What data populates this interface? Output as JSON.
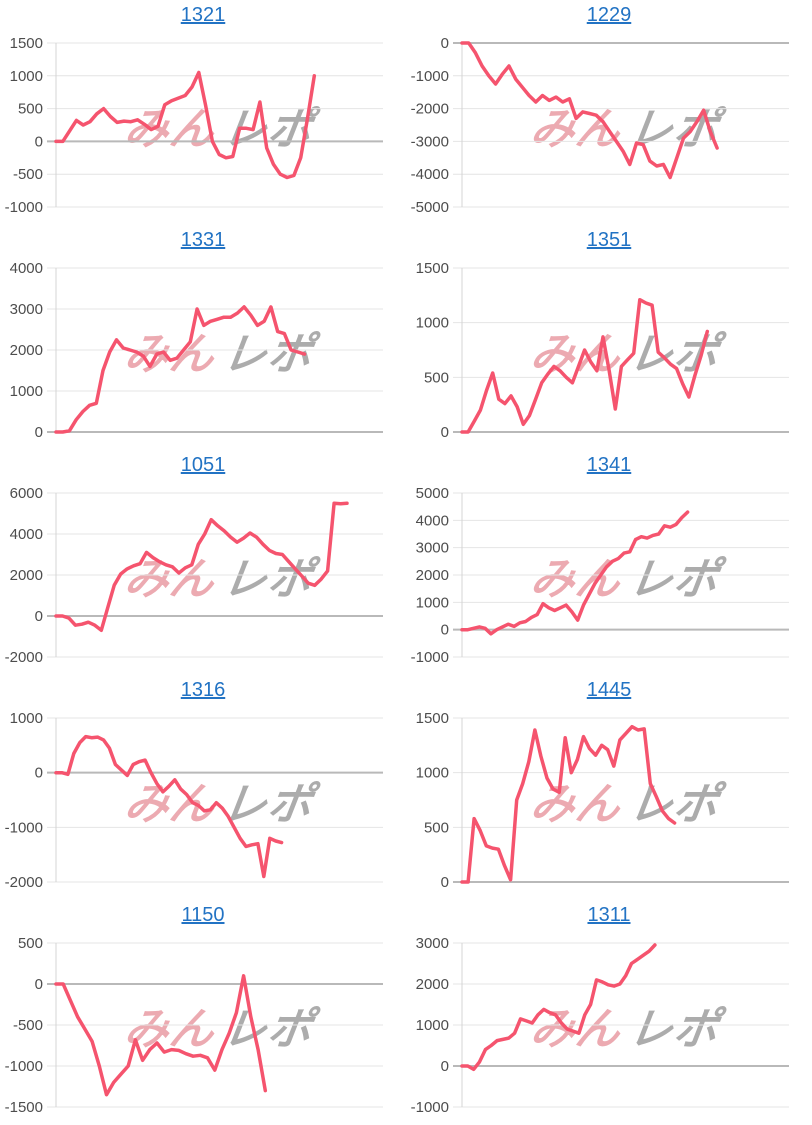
{
  "page": {
    "background": "#ffffff"
  },
  "colors": {
    "line": "#f5546e",
    "grid": "#e4e4e4",
    "zero_line": "#b9b9b9",
    "axis": "#d4d4d4",
    "tick_label": "#4d4d4d",
    "title_link": "#2273c4",
    "watermark_pink": "rgba(231,149,158,0.8)",
    "watermark_gray": "rgba(158,158,158,0.85)"
  },
  "watermark": {
    "pink_text": "みん",
    "gray_text": "レポ"
  },
  "chart_data": [
    {
      "type": "line",
      "title": "1321",
      "ticks": [
        1500,
        1000,
        500,
        0,
        -500,
        -1000
      ],
      "ylim": [
        -1000,
        1500
      ],
      "xlabel": "",
      "ylabel": "",
      "legend": "none",
      "grid": "horizontal",
      "span_frac": 0.79,
      "values": [
        0,
        0,
        160,
        320,
        250,
        300,
        420,
        500,
        380,
        290,
        310,
        300,
        330,
        260,
        180,
        230,
        560,
        620,
        660,
        700,
        830,
        1050,
        550,
        0,
        -200,
        -250,
        -230,
        200,
        200,
        180,
        600,
        -100,
        -350,
        -500,
        -550,
        -520,
        -250,
        350,
        1000
      ]
    },
    {
      "type": "line",
      "title": "1229",
      "ticks": [
        0,
        -1000,
        -2000,
        -3000,
        -4000,
        -5000
      ],
      "ylim": [
        -5000,
        0
      ],
      "xlabel": "",
      "ylabel": "",
      "legend": "none",
      "grid": "horizontal",
      "span_frac": 0.78,
      "values": [
        0,
        0,
        -300,
        -700,
        -1000,
        -1250,
        -950,
        -700,
        -1100,
        -1350,
        -1600,
        -1800,
        -1600,
        -1750,
        -1650,
        -1800,
        -1700,
        -2300,
        -2100,
        -2150,
        -2200,
        -2400,
        -2700,
        -3000,
        -3300,
        -3700,
        -3050,
        -3100,
        -3600,
        -3750,
        -3700,
        -4100,
        -3500,
        -2900,
        -2700,
        -2400,
        -2050,
        -2700,
        -3200
      ]
    },
    {
      "type": "line",
      "title": "1331",
      "ticks": [
        4000,
        3000,
        2000,
        1000,
        0
      ],
      "ylim": [
        0,
        4000
      ],
      "xlabel": "",
      "ylabel": "",
      "legend": "none",
      "grid": "horizontal",
      "span_frac": 0.76,
      "values": [
        0,
        0,
        30,
        300,
        500,
        650,
        700,
        1500,
        1950,
        2250,
        2050,
        2000,
        1950,
        1850,
        1600,
        1900,
        1950,
        1750,
        1800,
        2000,
        2200,
        3000,
        2600,
        2700,
        2750,
        2800,
        2800,
        2900,
        3050,
        2850,
        2600,
        2700,
        3050,
        2450,
        2400,
        2000,
        1950,
        1900
      ]
    },
    {
      "type": "line",
      "title": "1351",
      "ticks": [
        1500,
        1000,
        500,
        0
      ],
      "ylim": [
        0,
        1500
      ],
      "xlabel": "",
      "ylabel": "",
      "legend": "none",
      "grid": "horizontal",
      "span_frac": 0.75,
      "values": [
        0,
        0,
        100,
        200,
        380,
        540,
        300,
        260,
        330,
        230,
        70,
        150,
        300,
        450,
        530,
        600,
        560,
        500,
        450,
        600,
        750,
        640,
        560,
        870,
        560,
        210,
        600,
        660,
        720,
        1210,
        1180,
        1160,
        730,
        680,
        620,
        580,
        440,
        320,
        520,
        700,
        920
      ]
    },
    {
      "type": "line",
      "title": "1051",
      "ticks": [
        6000,
        4000,
        2000,
        0,
        -2000
      ],
      "ylim": [
        -2000,
        6000
      ],
      "xlabel": "",
      "ylabel": "",
      "legend": "none",
      "grid": "horizontal",
      "span_frac": 0.89,
      "values": [
        0,
        0,
        -100,
        -450,
        -400,
        -300,
        -450,
        -700,
        400,
        1500,
        2050,
        2300,
        2450,
        2550,
        3100,
        2850,
        2650,
        2500,
        2400,
        2100,
        2350,
        2500,
        3500,
        4000,
        4700,
        4400,
        4150,
        3850,
        3600,
        3800,
        4050,
        3850,
        3500,
        3200,
        3050,
        3000,
        2650,
        2300,
        1950,
        1600,
        1500,
        1800,
        2200,
        5500,
        5480,
        5500
      ]
    },
    {
      "type": "line",
      "title": "1341",
      "ticks": [
        5000,
        4000,
        3000,
        2000,
        1000,
        0,
        -1000
      ],
      "ylim": [
        -1000,
        5000
      ],
      "xlabel": "",
      "ylabel": "",
      "legend": "none",
      "grid": "horizontal",
      "span_frac": 0.69,
      "values": [
        0,
        0,
        50,
        100,
        50,
        -150,
        0,
        100,
        200,
        120,
        250,
        300,
        450,
        550,
        950,
        800,
        700,
        800,
        900,
        650,
        350,
        900,
        1300,
        1700,
        2000,
        2300,
        2500,
        2600,
        2800,
        2850,
        3300,
        3400,
        3350,
        3450,
        3500,
        3800,
        3750,
        3850,
        4100,
        4300
      ]
    },
    {
      "type": "line",
      "title": "1316",
      "ticks": [
        1000,
        0,
        -1000,
        -2000
      ],
      "ylim": [
        -2000,
        1000
      ],
      "xlabel": "",
      "ylabel": "",
      "legend": "none",
      "grid": "horizontal",
      "span_frac": 0.69,
      "values": [
        0,
        0,
        -30,
        350,
        550,
        660,
        640,
        650,
        600,
        450,
        150,
        50,
        -50,
        150,
        200,
        230,
        0,
        -200,
        -350,
        -250,
        -130,
        -300,
        -400,
        -550,
        -600,
        -700,
        -680,
        -550,
        -650,
        -800,
        -1000,
        -1200,
        -1350,
        -1320,
        -1300,
        -1900,
        -1200,
        -1250,
        -1280
      ]
    },
    {
      "type": "line",
      "title": "1445",
      "ticks": [
        1500,
        1000,
        500,
        0
      ],
      "ylim": [
        0,
        1500
      ],
      "xlabel": "",
      "ylabel": "",
      "legend": "none",
      "grid": "horizontal",
      "span_frac": 0.65,
      "values": [
        0,
        0,
        580,
        470,
        330,
        310,
        300,
        150,
        20,
        750,
        900,
        1100,
        1390,
        1150,
        950,
        850,
        820,
        1320,
        1000,
        1120,
        1330,
        1220,
        1160,
        1250,
        1210,
        1060,
        1300,
        1360,
        1420,
        1390,
        1400,
        900,
        780,
        650,
        580,
        540
      ]
    },
    {
      "type": "line",
      "title": "1150",
      "ticks": [
        500,
        0,
        -500,
        -1000,
        -1500
      ],
      "ylim": [
        -1500,
        500
      ],
      "xlabel": "",
      "ylabel": "",
      "legend": "none",
      "grid": "horizontal",
      "span_frac": 0.64,
      "values": [
        0,
        0,
        -200,
        -400,
        -550,
        -700,
        -1000,
        -1350,
        -1200,
        -1100,
        -1000,
        -680,
        -930,
        -800,
        -720,
        -830,
        -800,
        -810,
        -850,
        -880,
        -870,
        -900,
        -1050,
        -800,
        -600,
        -350,
        100,
        -400,
        -800,
        -1300
      ]
    },
    {
      "type": "line",
      "title": "1311",
      "ticks": [
        3000,
        2000,
        1000,
        0,
        -1000
      ],
      "ylim": [
        -1000,
        3000
      ],
      "xlabel": "",
      "ylabel": "",
      "legend": "none",
      "grid": "horizontal",
      "span_frac": 0.59,
      "values": [
        0,
        0,
        -80,
        100,
        400,
        500,
        620,
        650,
        680,
        800,
        1150,
        1100,
        1050,
        1250,
        1380,
        1300,
        1250,
        1050,
        900,
        850,
        800,
        1250,
        1500,
        2100,
        2050,
        1980,
        1950,
        2000,
        2200,
        2500,
        2600,
        2700,
        2800,
        2950
      ]
    }
  ]
}
